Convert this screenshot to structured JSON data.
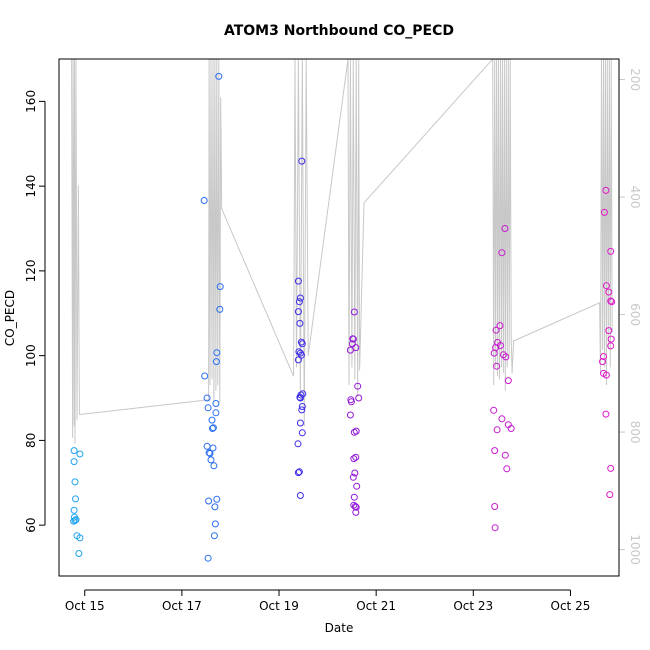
{
  "chart_data": {
    "type": "scatter",
    "title": "ATOM3 Northbound CO_PECD",
    "xlabel": "Date",
    "ylabel": "CO_PECD",
    "x_unit": "days since Oct 14",
    "xlim": [
      0.47,
      12.0
    ],
    "ylim": [
      48,
      170
    ],
    "x_ticks": [
      {
        "value": 1,
        "label": "Oct 15"
      },
      {
        "value": 3,
        "label": "Oct 17"
      },
      {
        "value": 5,
        "label": "Oct 19"
      },
      {
        "value": 7,
        "label": "Oct 21"
      },
      {
        "value": 9,
        "label": "Oct 23"
      },
      {
        "value": 11,
        "label": "Oct 25"
      }
    ],
    "y_ticks": [
      60,
      80,
      100,
      120,
      140,
      160
    ],
    "secondary_axis": {
      "label_color": "#c8c8c8",
      "ylim_reversed": [
        1045,
        165
      ],
      "ticks": [
        200,
        400,
        600,
        800,
        1000
      ]
    },
    "points": [
      {
        "x": 0.78,
        "y": 77.6,
        "color": "#1fa3f0"
      },
      {
        "x": 0.78,
        "y": 75.0,
        "color": "#1fa3f0"
      },
      {
        "x": 0.8,
        "y": 70.2,
        "color": "#1fa3f0"
      },
      {
        "x": 0.81,
        "y": 66.2,
        "color": "#1fa3f0"
      },
      {
        "x": 0.78,
        "y": 63.5,
        "color": "#1fa3f0"
      },
      {
        "x": 0.79,
        "y": 61.9,
        "color": "#1fa3f0"
      },
      {
        "x": 0.8,
        "y": 61.1,
        "color": "#1fa3f0"
      },
      {
        "x": 0.77,
        "y": 60.9,
        "color": "#1fa3f0"
      },
      {
        "x": 0.82,
        "y": 61.3,
        "color": "#1fa3f0"
      },
      {
        "x": 0.84,
        "y": 57.5,
        "color": "#1fa3f0"
      },
      {
        "x": 0.9,
        "y": 76.8,
        "color": "#1fa3f0"
      },
      {
        "x": 0.9,
        "y": 57.0,
        "color": "#1fa3f0"
      },
      {
        "x": 0.88,
        "y": 53.3,
        "color": "#1fa3f0"
      },
      {
        "x": 3.46,
        "y": 136.6,
        "color": "#2a6ef0"
      },
      {
        "x": 3.47,
        "y": 95.2,
        "color": "#2a6ef0"
      },
      {
        "x": 3.52,
        "y": 90.0,
        "color": "#2a6ef0"
      },
      {
        "x": 3.54,
        "y": 87.7,
        "color": "#2a6ef0"
      },
      {
        "x": 3.52,
        "y": 78.6,
        "color": "#2a6ef0"
      },
      {
        "x": 3.56,
        "y": 77.1,
        "color": "#2a6ef0"
      },
      {
        "x": 3.58,
        "y": 76.9,
        "color": "#2a6ef0"
      },
      {
        "x": 3.55,
        "y": 65.7,
        "color": "#2a6ef0"
      },
      {
        "x": 3.54,
        "y": 52.2,
        "color": "#2a6ef0"
      },
      {
        "x": 3.62,
        "y": 84.8,
        "color": "#2a6ef0"
      },
      {
        "x": 3.63,
        "y": 82.8,
        "color": "#2a6ef0"
      },
      {
        "x": 3.65,
        "y": 83.0,
        "color": "#2a6ef0"
      },
      {
        "x": 3.6,
        "y": 75.4,
        "color": "#2a6ef0"
      },
      {
        "x": 3.66,
        "y": 74.0,
        "color": "#2a6ef0"
      },
      {
        "x": 3.64,
        "y": 78.2,
        "color": "#2a6ef0"
      },
      {
        "x": 3.68,
        "y": 64.3,
        "color": "#2a6ef0"
      },
      {
        "x": 3.69,
        "y": 60.3,
        "color": "#2a6ef0"
      },
      {
        "x": 3.67,
        "y": 57.5,
        "color": "#2a6ef0"
      },
      {
        "x": 3.72,
        "y": 100.7,
        "color": "#2a6ef0"
      },
      {
        "x": 3.71,
        "y": 98.6,
        "color": "#2a6ef0"
      },
      {
        "x": 3.7,
        "y": 88.7,
        "color": "#2a6ef0"
      },
      {
        "x": 3.7,
        "y": 86.5,
        "color": "#2a6ef0"
      },
      {
        "x": 3.72,
        "y": 66.1,
        "color": "#2a6ef0"
      },
      {
        "x": 3.76,
        "y": 165.9,
        "color": "#2a6ef0"
      },
      {
        "x": 3.79,
        "y": 116.3,
        "color": "#2a6ef0"
      },
      {
        "x": 3.78,
        "y": 110.9,
        "color": "#2a6ef0"
      },
      {
        "x": 5.4,
        "y": 117.6,
        "color": "#3c2ce8"
      },
      {
        "x": 5.47,
        "y": 145.9,
        "color": "#3c2ce8"
      },
      {
        "x": 5.44,
        "y": 113.6,
        "color": "#3c2ce8"
      },
      {
        "x": 5.42,
        "y": 112.7,
        "color": "#3c2ce8"
      },
      {
        "x": 5.4,
        "y": 110.4,
        "color": "#3c2ce8"
      },
      {
        "x": 5.43,
        "y": 107.6,
        "color": "#3c2ce8"
      },
      {
        "x": 5.46,
        "y": 103.2,
        "color": "#3c2ce8"
      },
      {
        "x": 5.48,
        "y": 102.8,
        "color": "#3c2ce8"
      },
      {
        "x": 5.41,
        "y": 100.9,
        "color": "#3c2ce8"
      },
      {
        "x": 5.44,
        "y": 100.6,
        "color": "#3c2ce8"
      },
      {
        "x": 5.46,
        "y": 100.1,
        "color": "#3c2ce8"
      },
      {
        "x": 5.4,
        "y": 99.0,
        "color": "#3c2ce8"
      },
      {
        "x": 5.49,
        "y": 91.0,
        "color": "#3c2ce8"
      },
      {
        "x": 5.45,
        "y": 90.7,
        "color": "#3c2ce8"
      },
      {
        "x": 5.43,
        "y": 90.2,
        "color": "#3c2ce8"
      },
      {
        "x": 5.44,
        "y": 90.0,
        "color": "#3c2ce8"
      },
      {
        "x": 5.48,
        "y": 88.0,
        "color": "#3c2ce8"
      },
      {
        "x": 5.47,
        "y": 87.2,
        "color": "#3c2ce8"
      },
      {
        "x": 5.44,
        "y": 84.1,
        "color": "#3c2ce8"
      },
      {
        "x": 5.48,
        "y": 81.8,
        "color": "#3c2ce8"
      },
      {
        "x": 5.39,
        "y": 79.2,
        "color": "#3c2ce8"
      },
      {
        "x": 5.42,
        "y": 72.6,
        "color": "#3c2ce8"
      },
      {
        "x": 5.4,
        "y": 72.4,
        "color": "#3c2ce8"
      },
      {
        "x": 5.44,
        "y": 67.0,
        "color": "#3c2ce8"
      },
      {
        "x": 6.55,
        "y": 110.3,
        "color": "#9418d8"
      },
      {
        "x": 6.52,
        "y": 104.0,
        "color": "#9418d8"
      },
      {
        "x": 6.53,
        "y": 103.9,
        "color": "#9418d8"
      },
      {
        "x": 6.51,
        "y": 102.8,
        "color": "#9418d8"
      },
      {
        "x": 6.58,
        "y": 101.9,
        "color": "#9418d8"
      },
      {
        "x": 6.47,
        "y": 101.3,
        "color": "#9418d8"
      },
      {
        "x": 6.48,
        "y": 89.6,
        "color": "#9418d8"
      },
      {
        "x": 6.49,
        "y": 89.1,
        "color": "#9418d8"
      },
      {
        "x": 6.62,
        "y": 92.8,
        "color": "#9418d8"
      },
      {
        "x": 6.64,
        "y": 90.0,
        "color": "#9418d8"
      },
      {
        "x": 6.47,
        "y": 86.0,
        "color": "#9418d8"
      },
      {
        "x": 6.59,
        "y": 82.2,
        "color": "#9418d8"
      },
      {
        "x": 6.55,
        "y": 81.9,
        "color": "#9418d8"
      },
      {
        "x": 6.58,
        "y": 76.0,
        "color": "#9418d8"
      },
      {
        "x": 6.54,
        "y": 75.7,
        "color": "#9418d8"
      },
      {
        "x": 6.56,
        "y": 72.3,
        "color": "#9418d8"
      },
      {
        "x": 6.53,
        "y": 71.3,
        "color": "#9418d8"
      },
      {
        "x": 6.6,
        "y": 69.2,
        "color": "#9418d8"
      },
      {
        "x": 6.55,
        "y": 66.6,
        "color": "#9418d8"
      },
      {
        "x": 6.54,
        "y": 64.7,
        "color": "#9418d8"
      },
      {
        "x": 6.57,
        "y": 64.4,
        "color": "#9418d8"
      },
      {
        "x": 6.59,
        "y": 64.2,
        "color": "#9418d8"
      },
      {
        "x": 6.58,
        "y": 63.0,
        "color": "#9418d8"
      },
      {
        "x": 9.65,
        "y": 130.0,
        "color": "#c81ad0"
      },
      {
        "x": 9.59,
        "y": 124.3,
        "color": "#c81ad0"
      },
      {
        "x": 9.55,
        "y": 107.1,
        "color": "#c81ad0"
      },
      {
        "x": 9.47,
        "y": 106.0,
        "color": "#c81ad0"
      },
      {
        "x": 9.5,
        "y": 103.1,
        "color": "#c81ad0"
      },
      {
        "x": 9.56,
        "y": 102.4,
        "color": "#c81ad0"
      },
      {
        "x": 9.46,
        "y": 101.9,
        "color": "#c81ad0"
      },
      {
        "x": 9.43,
        "y": 100.6,
        "color": "#c81ad0"
      },
      {
        "x": 9.62,
        "y": 100.2,
        "color": "#c81ad0"
      },
      {
        "x": 9.67,
        "y": 99.7,
        "color": "#c81ad0"
      },
      {
        "x": 9.48,
        "y": 97.5,
        "color": "#c81ad0"
      },
      {
        "x": 9.72,
        "y": 94.1,
        "color": "#c81ad0"
      },
      {
        "x": 9.42,
        "y": 87.1,
        "color": "#c81ad0"
      },
      {
        "x": 9.59,
        "y": 85.1,
        "color": "#c81ad0"
      },
      {
        "x": 9.72,
        "y": 83.7,
        "color": "#c81ad0"
      },
      {
        "x": 9.78,
        "y": 82.8,
        "color": "#c81ad0"
      },
      {
        "x": 9.49,
        "y": 82.5,
        "color": "#c81ad0"
      },
      {
        "x": 9.44,
        "y": 77.6,
        "color": "#c81ad0"
      },
      {
        "x": 9.66,
        "y": 76.5,
        "color": "#c81ad0"
      },
      {
        "x": 9.69,
        "y": 73.3,
        "color": "#c81ad0"
      },
      {
        "x": 9.44,
        "y": 64.4,
        "color": "#c81ad0"
      },
      {
        "x": 9.45,
        "y": 59.4,
        "color": "#c81ad0"
      },
      {
        "x": 11.73,
        "y": 139.0,
        "color": "#e01ac8"
      },
      {
        "x": 11.7,
        "y": 133.8,
        "color": "#e01ac8"
      },
      {
        "x": 11.83,
        "y": 124.6,
        "color": "#e01ac8"
      },
      {
        "x": 11.74,
        "y": 116.5,
        "color": "#e01ac8"
      },
      {
        "x": 11.79,
        "y": 115.0,
        "color": "#e01ac8"
      },
      {
        "x": 11.83,
        "y": 112.9,
        "color": "#e01ac8"
      },
      {
        "x": 11.85,
        "y": 112.7,
        "color": "#e01ac8"
      },
      {
        "x": 11.79,
        "y": 105.9,
        "color": "#e01ac8"
      },
      {
        "x": 11.84,
        "y": 103.9,
        "color": "#e01ac8"
      },
      {
        "x": 11.83,
        "y": 102.3,
        "color": "#e01ac8"
      },
      {
        "x": 11.68,
        "y": 99.8,
        "color": "#e01ac8"
      },
      {
        "x": 11.66,
        "y": 98.6,
        "color": "#e01ac8"
      },
      {
        "x": 11.68,
        "y": 95.8,
        "color": "#e01ac8"
      },
      {
        "x": 11.74,
        "y": 95.4,
        "color": "#e01ac8"
      },
      {
        "x": 11.73,
        "y": 86.2,
        "color": "#e01ac8"
      },
      {
        "x": 11.83,
        "y": 73.4,
        "color": "#e01ac8"
      },
      {
        "x": 11.81,
        "y": 67.2,
        "color": "#e01ac8"
      }
    ],
    "line_series": {
      "name": "secondary series (grey line, right axis)",
      "color": "#c8c8c8",
      "y_axis": "right",
      "x": [
        0.73,
        0.75,
        0.76,
        0.78,
        0.79,
        0.8,
        0.82,
        0.84,
        0.87,
        0.89,
        0.92,
        3.55,
        3.56,
        3.58,
        3.6,
        3.62,
        3.64,
        3.66,
        3.68,
        3.7,
        3.72,
        3.74,
        3.76,
        3.78,
        3.8,
        3.82,
        5.3,
        5.33,
        5.36,
        5.4,
        5.44,
        5.48,
        5.52,
        5.56,
        5.6,
        6.42,
        6.44,
        6.47,
        6.5,
        6.53,
        6.56,
        6.59,
        6.62,
        6.64,
        6.66,
        6.75,
        9.4,
        9.42,
        9.44,
        9.46,
        9.48,
        9.5,
        9.52,
        9.54,
        9.56,
        9.58,
        9.6,
        9.62,
        9.64,
        9.66,
        9.68,
        9.7,
        9.72,
        9.74,
        9.76,
        9.78,
        9.8,
        9.83,
        11.6,
        11.62,
        11.64,
        11.66,
        11.68,
        11.7,
        11.72,
        11.74,
        11.76,
        11.78,
        11.8,
        11.82,
        11.84,
        11.86
      ],
      "y": [
        165,
        810,
        165,
        790,
        165,
        820,
        165,
        780,
        380,
        770,
        770,
        745,
        165,
        720,
        165,
        710,
        165,
        750,
        165,
        730,
        165,
        720,
        165,
        750,
        230,
        420,
        705,
        165,
        690,
        165,
        740,
        165,
        790,
        165,
        670,
        165,
        720,
        165,
        690,
        165,
        710,
        165,
        740,
        165,
        695,
        410,
        165,
        720,
        165,
        690,
        165,
        705,
        165,
        710,
        165,
        690,
        165,
        700,
        165,
        730,
        165,
        690,
        165,
        670,
        165,
        640,
        700,
        645,
        580,
        700,
        165,
        660,
        165,
        690,
        165,
        720,
        165,
        660,
        165,
        690,
        165,
        630
      ]
    }
  }
}
